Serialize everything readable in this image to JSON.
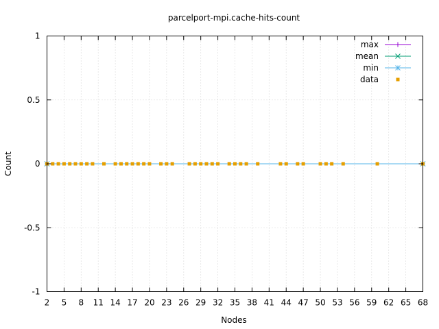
{
  "chart_data": {
    "type": "scatter",
    "title": "parcelport-mpi.cache-hits-count",
    "xlabel": "Nodes",
    "ylabel": "Count",
    "xlim": [
      2,
      68
    ],
    "ylim": [
      -1,
      1
    ],
    "x_ticks": [
      2,
      5,
      8,
      11,
      14,
      17,
      20,
      23,
      26,
      29,
      32,
      35,
      38,
      41,
      44,
      47,
      50,
      53,
      56,
      59,
      62,
      65,
      68
    ],
    "x_tick_labels": [
      "2",
      "5",
      "8",
      "11",
      "14",
      "17",
      "20",
      "23",
      "26",
      "29",
      "32",
      "35",
      "38",
      "41",
      "44",
      "47",
      "50",
      "53",
      "56",
      "59",
      "62",
      "65",
      "68"
    ],
    "y_ticks": [
      -1,
      -0.5,
      0,
      0.5,
      1
    ],
    "y_tick_labels": [
      "-1",
      "-0.5",
      "0",
      "0.5",
      "1"
    ],
    "grid": true,
    "legend_position": "top-right",
    "series": [
      {
        "name": "max",
        "color": "#9400d3",
        "marker": "plus",
        "style": "line",
        "x": [
          2,
          68
        ],
        "values": [
          0,
          0
        ]
      },
      {
        "name": "mean",
        "color": "#009e73",
        "marker": "cross",
        "style": "line",
        "x": [
          2,
          68
        ],
        "values": [
          0,
          0
        ]
      },
      {
        "name": "min",
        "color": "#56b4e9",
        "marker": "star",
        "style": "line",
        "x": [
          2,
          68
        ],
        "values": [
          0,
          0
        ]
      },
      {
        "name": "data",
        "color": "#e69f00",
        "marker": "square",
        "style": "points",
        "x": [
          2,
          3,
          4,
          5,
          6,
          7,
          8,
          9,
          10,
          12,
          14,
          15,
          16,
          17,
          18,
          19,
          20,
          22,
          23,
          24,
          27,
          28,
          29,
          30,
          31,
          32,
          34,
          35,
          36,
          37,
          39,
          43,
          44,
          46,
          47,
          50,
          51,
          52,
          54,
          60,
          68
        ],
        "values": [
          0,
          0,
          0,
          0,
          0,
          0,
          0,
          0,
          0,
          0,
          0,
          0,
          0,
          0,
          0,
          0,
          0,
          0,
          0,
          0,
          0,
          0,
          0,
          0,
          0,
          0,
          0,
          0,
          0,
          0,
          0,
          0,
          0,
          0,
          0,
          0,
          0,
          0,
          0,
          0,
          0
        ]
      }
    ]
  }
}
